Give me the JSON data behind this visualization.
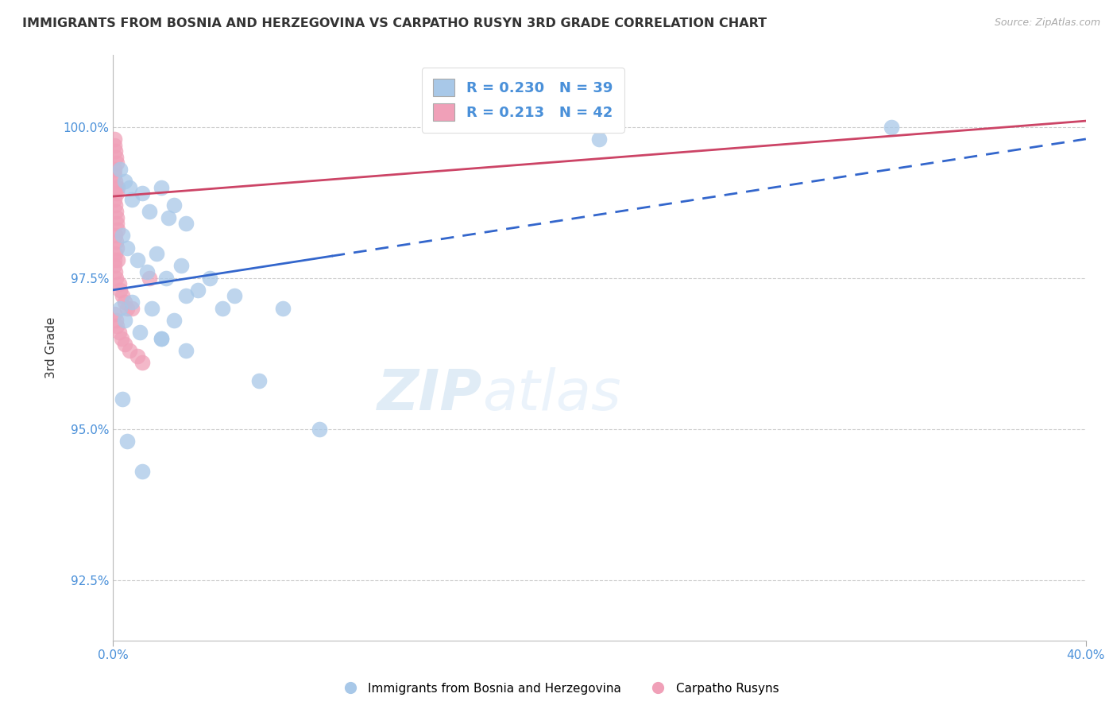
{
  "title": "IMMIGRANTS FROM BOSNIA AND HERZEGOVINA VS CARPATHO RUSYN 3RD GRADE CORRELATION CHART",
  "source": "Source: ZipAtlas.com",
  "ylabel": "3rd Grade",
  "x_min": 0.0,
  "x_max": 40.0,
  "y_min": 91.5,
  "y_max": 101.2,
  "y_ticks": [
    92.5,
    95.0,
    97.5,
    100.0
  ],
  "x_ticks": [
    0.0,
    40.0
  ],
  "blue_R": 0.23,
  "blue_N": 39,
  "pink_R": 0.213,
  "pink_N": 42,
  "blue_color": "#a8c8e8",
  "pink_color": "#f0a0b8",
  "blue_line_color": "#3366cc",
  "pink_line_color": "#cc4466",
  "blue_scatter_x": [
    0.3,
    0.5,
    0.7,
    0.8,
    1.2,
    1.5,
    2.0,
    2.3,
    2.5,
    3.0,
    0.4,
    0.6,
    1.0,
    1.4,
    1.8,
    2.2,
    2.8,
    3.5,
    4.0,
    5.0,
    0.3,
    0.5,
    0.8,
    1.1,
    1.6,
    2.0,
    2.5,
    3.0,
    4.5,
    6.0,
    0.4,
    0.6,
    1.2,
    2.0,
    3.0,
    7.0,
    8.5,
    20.0,
    32.0
  ],
  "blue_scatter_y": [
    99.3,
    99.1,
    99.0,
    98.8,
    98.9,
    98.6,
    99.0,
    98.5,
    98.7,
    98.4,
    98.2,
    98.0,
    97.8,
    97.6,
    97.9,
    97.5,
    97.7,
    97.3,
    97.5,
    97.2,
    97.0,
    96.8,
    97.1,
    96.6,
    97.0,
    96.5,
    96.8,
    96.3,
    97.0,
    95.8,
    95.5,
    94.8,
    94.3,
    96.5,
    97.2,
    97.0,
    95.0,
    99.8,
    100.0
  ],
  "pink_scatter_x": [
    0.05,
    0.08,
    0.1,
    0.12,
    0.15,
    0.05,
    0.08,
    0.1,
    0.12,
    0.15,
    0.08,
    0.1,
    0.12,
    0.15,
    0.18,
    0.2,
    0.1,
    0.12,
    0.15,
    0.2,
    0.05,
    0.08,
    0.1,
    0.12,
    0.2,
    0.25,
    0.3,
    0.4,
    0.5,
    0.6,
    0.08,
    0.12,
    0.18,
    0.25,
    0.35,
    0.5,
    0.7,
    1.0,
    1.2,
    1.5,
    0.1,
    0.8
  ],
  "pink_scatter_y": [
    99.8,
    99.7,
    99.6,
    99.5,
    99.4,
    99.3,
    99.2,
    99.1,
    99.0,
    98.9,
    98.8,
    98.7,
    98.6,
    98.5,
    98.4,
    98.3,
    98.2,
    98.1,
    98.0,
    99.0,
    97.8,
    97.7,
    97.6,
    97.5,
    97.8,
    97.4,
    97.3,
    97.2,
    97.1,
    97.0,
    96.9,
    96.8,
    96.7,
    96.6,
    96.5,
    96.4,
    96.3,
    96.2,
    96.1,
    97.5,
    97.9,
    97.0
  ],
  "blue_line_x0": 0.0,
  "blue_line_y0": 97.3,
  "blue_line_x1": 40.0,
  "blue_line_y1": 99.8,
  "blue_line_solid_end": 9.0,
  "pink_line_x0": 0.0,
  "pink_line_y0": 98.85,
  "pink_line_x1": 40.0,
  "pink_line_y1": 100.1,
  "watermark_zip": "ZIP",
  "watermark_atlas": "atlas",
  "background_color": "#ffffff",
  "grid_color": "#cccccc"
}
